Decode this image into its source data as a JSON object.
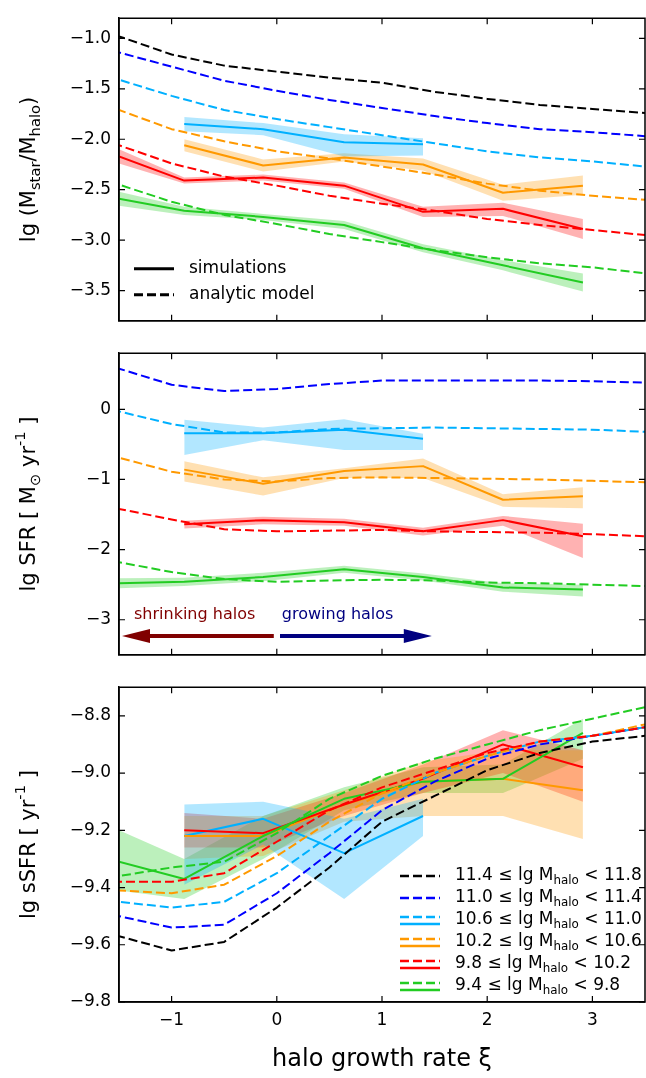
{
  "chart_data": [
    {
      "type": "line",
      "ylabel": "lg (M$_{star}$/M$_{halo}$)",
      "xlim": [
        -1.5,
        3.5
      ],
      "xticks": [
        {
          "value": -1,
          "label": null
        },
        {
          "value": 0,
          "label": null
        },
        {
          "value": 1,
          "label": null
        },
        {
          "value": 2,
          "label": null
        },
        {
          "value": 3,
          "label": null
        }
      ],
      "ylim": [
        -3.8,
        -0.8
      ],
      "yticks": [
        {
          "value": -1,
          "label": "−1.0"
        },
        {
          "value": -1.5,
          "label": "−1.5"
        },
        {
          "value": -2,
          "label": "−2.0"
        },
        {
          "value": -2.5,
          "label": "−2.5"
        },
        {
          "value": -3,
          "label": "−3.0"
        },
        {
          "value": -3.5,
          "label": "−3.5"
        }
      ],
      "tick_labels": "y",
      "grid": false,
      "legend": "bottom left",
      "annotations": [
        "simulations",
        "analytic model"
      ],
      "series": [
        {
          "type": "line",
          "color": "#000000",
          "line_style": "dashed",
          "x": [
            -1.5,
            -1,
            -0.5,
            0,
            0.5,
            1,
            1.5,
            2,
            2.5,
            3,
            3.5
          ],
          "values": [
            -0.98,
            -1.16,
            -1.27,
            -1.33,
            -1.39,
            -1.44,
            -1.53,
            -1.6,
            -1.66,
            -1.7,
            -1.74
          ]
        },
        {
          "type": "line",
          "color": "#0000ff",
          "line_style": "dashed",
          "x": [
            -1.5,
            -1,
            -0.5,
            0,
            0.5,
            1,
            1.5,
            2,
            2.5,
            3,
            3.5
          ],
          "values": [
            -1.14,
            -1.28,
            -1.42,
            -1.52,
            -1.61,
            -1.69,
            -1.77,
            -1.84,
            -1.9,
            -1.93,
            -1.97
          ]
        },
        {
          "type": "line",
          "color": "#00b0ff",
          "line_style": "dashed",
          "x": [
            -1.5,
            -1,
            -0.5,
            0,
            0.5,
            1,
            1.5,
            2,
            2.5,
            3,
            3.5
          ],
          "values": [
            -1.41,
            -1.57,
            -1.71,
            -1.8,
            -1.88,
            -1.96,
            -2.04,
            -2.12,
            -2.18,
            -2.22,
            -2.27
          ]
        },
        {
          "type": "line",
          "color": "#ff9900",
          "line_style": "dashed",
          "x": [
            -1.5,
            -1,
            -0.5,
            0,
            0.5,
            1,
            1.5,
            2,
            2.5,
            3,
            3.5
          ],
          "values": [
            -1.71,
            -1.9,
            -2.02,
            -2.12,
            -2.19,
            -2.27,
            -2.35,
            -2.44,
            -2.51,
            -2.56,
            -2.6
          ]
        },
        {
          "type": "line",
          "color": "#ff0000",
          "line_style": "dashed",
          "x": [
            -1.5,
            -1,
            -0.5,
            0,
            0.5,
            1,
            1.5,
            2,
            2.5,
            3,
            3.5
          ],
          "values": [
            -2.06,
            -2.24,
            -2.37,
            -2.46,
            -2.56,
            -2.64,
            -2.71,
            -2.79,
            -2.85,
            -2.9,
            -2.95
          ]
        },
        {
          "type": "line",
          "color": "#22cc22",
          "line_style": "dashed",
          "x": [
            -1.5,
            -1,
            -0.5,
            0,
            0.5,
            1,
            1.5,
            2,
            2.5,
            3,
            3.5
          ],
          "values": [
            -2.45,
            -2.62,
            -2.75,
            -2.84,
            -2.94,
            -3.02,
            -3.1,
            -3.17,
            -3.23,
            -3.27,
            -3.33
          ]
        },
        {
          "type": "line",
          "color": "#00b0ff",
          "line_style": "solid",
          "x": [
            -0.88,
            -0.13,
            0.64,
            1.39
          ],
          "values": [
            -1.85,
            -1.9,
            -2.03,
            -2.05
          ],
          "lower": [
            -1.92,
            -1.96,
            -2.17,
            -2.16
          ],
          "upper": [
            -1.78,
            -1.84,
            -1.95,
            -1.99
          ]
        },
        {
          "type": "line",
          "color": "#ff9900",
          "line_style": "solid",
          "x": [
            -0.88,
            -0.13,
            0.64,
            1.39,
            2.15,
            2.91
          ],
          "values": [
            -2.06,
            -2.26,
            -2.18,
            -2.25,
            -2.53,
            -2.46
          ],
          "lower": [
            -2.12,
            -2.32,
            -2.22,
            -2.31,
            -2.61,
            -2.55
          ],
          "upper": [
            -2.0,
            -2.2,
            -2.14,
            -2.19,
            -2.45,
            -2.36
          ]
        },
        {
          "type": "line",
          "color": "#ff0000",
          "line_style": "solid",
          "x": [
            -1.5,
            -0.88,
            -0.13,
            0.64,
            1.39,
            2.15,
            2.91
          ],
          "values": [
            -2.17,
            -2.41,
            -2.38,
            -2.46,
            -2.72,
            -2.69,
            -2.89
          ],
          "lower": [
            -2.24,
            -2.44,
            -2.41,
            -2.49,
            -2.77,
            -2.76,
            -2.99
          ],
          "upper": [
            -2.1,
            -2.38,
            -2.35,
            -2.43,
            -2.67,
            -2.63,
            -2.79
          ]
        },
        {
          "type": "line",
          "color": "#22cc22",
          "line_style": "solid",
          "x": [
            -1.5,
            -0.88,
            -0.13,
            0.64,
            1.39,
            2.15,
            2.91
          ],
          "values": [
            -2.59,
            -2.71,
            -2.77,
            -2.85,
            -3.08,
            -3.25,
            -3.42
          ],
          "lower": [
            -2.66,
            -2.75,
            -2.8,
            -2.89,
            -3.12,
            -3.3,
            -3.51
          ],
          "upper": [
            -2.52,
            -2.67,
            -2.74,
            -2.81,
            -3.04,
            -3.2,
            -3.33
          ]
        }
      ]
    },
    {
      "type": "line",
      "ylabel": "lg SFR [ M$_{⊙}$ yr$^{-1}$ ]",
      "xlim": [
        -1.5,
        3.5
      ],
      "xticks": [
        {
          "value": -1,
          "label": null
        },
        {
          "value": 0,
          "label": null
        },
        {
          "value": 1,
          "label": null
        },
        {
          "value": 2,
          "label": null
        },
        {
          "value": 3,
          "label": null
        }
      ],
      "ylim": [
        -3.5,
        0.8
      ],
      "yticks": [
        0,
        {
          "value": -1,
          "label": "−1"
        },
        {
          "value": -2,
          "label": "−2"
        },
        {
          "value": -3,
          "label": "−3"
        }
      ],
      "tick_labels": "y",
      "grid": false,
      "annotations": [
        "shrinking halos",
        "growing halos"
      ],
      "series": [
        {
          "type": "line",
          "color": "#0000ff",
          "line_style": "dashed",
          "x": [
            -1.5,
            -1,
            -0.5,
            0,
            0.5,
            1,
            1.5,
            2,
            2.5,
            3,
            3.5
          ],
          "values": [
            0.58,
            0.35,
            0.26,
            0.29,
            0.36,
            0.41,
            0.41,
            0.41,
            0.41,
            0.4,
            0.38
          ]
        },
        {
          "type": "line",
          "color": "#00b0ff",
          "line_style": "dashed",
          "x": [
            -1.5,
            -1,
            -0.5,
            0,
            0.5,
            1,
            1.5,
            2,
            2.5,
            3,
            3.5
          ],
          "values": [
            -0.03,
            -0.21,
            -0.33,
            -0.33,
            -0.28,
            -0.27,
            -0.26,
            -0.27,
            -0.28,
            -0.29,
            -0.32
          ]
        },
        {
          "type": "line",
          "color": "#ff9900",
          "line_style": "dashed",
          "x": [
            -1.5,
            -1,
            -0.5,
            0,
            0.5,
            1,
            1.5,
            2,
            2.5,
            3,
            3.5
          ],
          "values": [
            -0.69,
            -0.89,
            -1.0,
            -1.03,
            -0.98,
            -0.97,
            -0.98,
            -0.99,
            -1.0,
            -1.02,
            -1.04
          ]
        },
        {
          "type": "line",
          "color": "#ff0000",
          "line_style": "dashed",
          "x": [
            -1.5,
            -1,
            -0.5,
            0,
            0.5,
            1,
            1.5,
            2,
            2.5,
            3,
            3.5
          ],
          "values": [
            -1.42,
            -1.57,
            -1.71,
            -1.74,
            -1.73,
            -1.72,
            -1.74,
            -1.75,
            -1.76,
            -1.78,
            -1.81
          ]
        },
        {
          "type": "line",
          "color": "#22cc22",
          "line_style": "dashed",
          "x": [
            -1.5,
            -1,
            -0.5,
            0,
            0.5,
            1,
            1.5,
            2,
            2.5,
            3,
            3.5
          ],
          "values": [
            -2.18,
            -2.32,
            -2.42,
            -2.46,
            -2.44,
            -2.43,
            -2.44,
            -2.47,
            -2.48,
            -2.5,
            -2.52
          ]
        },
        {
          "type": "line",
          "color": "#00b0ff",
          "line_style": "solid",
          "x": [
            -0.88,
            -0.13,
            0.64,
            1.39
          ],
          "values": [
            -0.34,
            -0.34,
            -0.29,
            -0.42
          ],
          "lower": [
            -0.65,
            -0.44,
            -0.58,
            -0.58
          ],
          "upper": [
            -0.15,
            -0.26,
            -0.14,
            -0.35
          ]
        },
        {
          "type": "line",
          "color": "#ff9900",
          "line_style": "solid",
          "x": [
            -0.88,
            -0.13,
            0.64,
            1.39,
            2.15,
            2.91
          ],
          "values": [
            -0.86,
            -1.06,
            -0.88,
            -0.81,
            -1.29,
            -1.24
          ],
          "lower": [
            -1.03,
            -1.23,
            -0.98,
            -0.98,
            -1.39,
            -1.41
          ],
          "upper": [
            -0.74,
            -0.97,
            -0.84,
            -0.7,
            -1.21,
            -1.11
          ]
        },
        {
          "type": "line",
          "color": "#ff0000",
          "line_style": "solid",
          "x": [
            -0.88,
            -0.13,
            0.64,
            1.39,
            2.15,
            2.91
          ],
          "values": [
            -1.64,
            -1.58,
            -1.61,
            -1.74,
            -1.58,
            -1.81
          ],
          "lower": [
            -1.7,
            -1.64,
            -1.66,
            -1.8,
            -1.66,
            -2.12
          ],
          "upper": [
            -1.59,
            -1.53,
            -1.56,
            -1.69,
            -1.52,
            -1.63
          ]
        },
        {
          "type": "line",
          "color": "#22cc22",
          "line_style": "solid",
          "x": [
            -1.5,
            -0.88,
            -0.13,
            0.64,
            1.39,
            2.15,
            2.91
          ],
          "values": [
            -2.48,
            -2.46,
            -2.39,
            -2.28,
            -2.39,
            -2.54,
            -2.57
          ],
          "lower": [
            -2.55,
            -2.52,
            -2.45,
            -2.33,
            -2.44,
            -2.6,
            -2.67
          ],
          "upper": [
            -2.41,
            -2.4,
            -2.33,
            -2.23,
            -2.34,
            -2.48,
            -2.5
          ]
        }
      ]
    },
    {
      "type": "line",
      "ylabel": "lg sSFR [ yr$^{-1}$ ]",
      "xlabel": "halo growth rate ξ",
      "xlim": [
        -1.5,
        3.5
      ],
      "xticks": [
        {
          "value": -1,
          "label": "−1"
        },
        0,
        1,
        2,
        3
      ],
      "ylim": [
        -9.8,
        -8.7
      ],
      "yticks": [
        {
          "value": -8.8,
          "label": "−8.8"
        },
        {
          "value": -9,
          "label": "−9.0"
        },
        {
          "value": -9.2,
          "label": "−9.2"
        },
        {
          "value": -9.4,
          "label": "−9.4"
        },
        {
          "value": -9.6,
          "label": "−9.6"
        },
        {
          "value": -9.8,
          "label": "−9.8"
        }
      ],
      "grid": false,
      "legend": "bottom right",
      "series": [
        {
          "type": "line",
          "name": "11.4 ≤ lg M$_{halo}$ < 11.8",
          "color": "#000000",
          "line_style": "dashed",
          "x": [
            -1.5,
            -1,
            -0.5,
            0,
            0.5,
            1,
            1.5,
            2,
            2.5,
            3,
            3.5
          ],
          "values": [
            -9.57,
            -9.62,
            -9.59,
            -9.47,
            -9.33,
            -9.17,
            -9.08,
            -8.99,
            -8.93,
            -8.89,
            -8.87
          ]
        },
        {
          "type": "line",
          "name": "11.0 ≤ lg M$_{halo}$ < 11.4",
          "color": "#0000ff",
          "line_style": "dashed",
          "x": [
            -1.5,
            -1,
            -0.5,
            0,
            0.5,
            1,
            1.5,
            2,
            2.5,
            3,
            3.5
          ],
          "values": [
            -9.5,
            -9.54,
            -9.53,
            -9.42,
            -9.28,
            -9.13,
            -9.03,
            -8.95,
            -8.9,
            -8.87,
            -8.84
          ]
        },
        {
          "type": "line",
          "name": "10.6 ≤ lg M$_{halo}$ < 11.0",
          "color": "#00b0ff",
          "line_style": "dashed",
          "x": [
            -1.5,
            -1,
            -0.5,
            0,
            0.5,
            1,
            1.5,
            2,
            2.5,
            3,
            3.5
          ],
          "values": [
            -9.45,
            -9.47,
            -9.45,
            -9.35,
            -9.22,
            -9.09,
            -9.0,
            -8.94,
            -8.89,
            -8.87,
            -8.84
          ]
        },
        {
          "type": "line",
          "name": "10.2 ≤ lg M$_{halo}$ < 10.6",
          "color": "#ff9900",
          "line_style": "dashed",
          "x": [
            -1.5,
            -1,
            -0.5,
            0,
            0.5,
            1,
            1.5,
            2,
            2.5,
            3,
            3.5
          ],
          "values": [
            -9.41,
            -9.42,
            -9.39,
            -9.29,
            -9.17,
            -9.07,
            -9.0,
            -8.94,
            -8.89,
            -8.87,
            -8.83
          ]
        },
        {
          "type": "line",
          "name": "9.8 ≤ lg M$_{halo}$ < 10.2",
          "color": "#ff0000",
          "line_style": "dashed",
          "x": [
            -1.5,
            -1,
            -0.5,
            0,
            0.5,
            1,
            1.5,
            2,
            2.5,
            3,
            3.5
          ],
          "values": [
            -9.38,
            -9.38,
            -9.35,
            -9.24,
            -9.13,
            -9.05,
            -8.99,
            -8.93,
            -8.89,
            -8.87,
            -8.84
          ]
        },
        {
          "type": "line",
          "name": "9.4 ≤ lg M$_{halo}$ < 9.8",
          "color": "#22cc22",
          "line_style": "dashed",
          "x": [
            -1.5,
            -1,
            -0.5,
            0,
            0.5,
            1,
            1.5,
            2,
            2.5,
            3,
            3.5
          ],
          "values": [
            -9.36,
            -9.33,
            -9.31,
            -9.21,
            -9.09,
            -9.01,
            -8.95,
            -8.9,
            -8.85,
            -8.81,
            -8.77
          ]
        },
        {
          "type": "line",
          "color": "#00b0ff",
          "line_style": "solid",
          "x": [
            -0.88,
            -0.13,
            0.64,
            1.39
          ],
          "values": [
            -9.22,
            -9.16,
            -9.28,
            -9.15
          ],
          "lower": [
            -9.39,
            -9.25,
            -9.44,
            -9.22
          ],
          "upper": [
            -9.11,
            -9.1,
            -9.16,
            -9.09
          ]
        },
        {
          "type": "line",
          "color": "#ff9900",
          "line_style": "solid",
          "x": [
            -0.88,
            -0.13,
            0.64,
            1.39,
            2.15,
            2.91
          ],
          "values": [
            -9.22,
            -9.22,
            -9.11,
            -9.03,
            -9.02,
            -9.06
          ],
          "lower": [
            -9.3,
            -9.29,
            -9.17,
            -9.15,
            -9.15,
            -9.23
          ],
          "upper": [
            -9.15,
            -9.15,
            -9.06,
            -8.96,
            -8.92,
            -8.92
          ]
        },
        {
          "type": "line",
          "color": "#ff0000",
          "line_style": "solid",
          "x": [
            -0.88,
            -0.13,
            0.64,
            1.39,
            2.15,
            2.91
          ],
          "values": [
            -9.2,
            -9.21,
            -9.11,
            -9.02,
            -8.9,
            -8.98
          ],
          "lower": [
            -9.26,
            -9.26,
            -9.15,
            -9.07,
            -9.0,
            -9.1
          ],
          "upper": [
            -9.14,
            -9.16,
            -9.07,
            -8.97,
            -8.85,
            -8.92
          ]
        },
        {
          "type": "line",
          "color": "#22cc22",
          "line_style": "solid",
          "x": [
            -1.5,
            -0.88,
            -0.13,
            0.64,
            1.39,
            2.15,
            2.91
          ],
          "values": [
            -9.31,
            -9.37,
            -9.22,
            -9.09,
            -9.03,
            -9.02,
            -8.86
          ],
          "lower": [
            -9.41,
            -9.44,
            -9.3,
            -9.13,
            -9.07,
            -9.07,
            -8.95
          ],
          "upper": [
            -9.2,
            -9.3,
            -9.15,
            -9.05,
            -8.98,
            -8.97,
            -8.81
          ]
        }
      ]
    }
  ]
}
